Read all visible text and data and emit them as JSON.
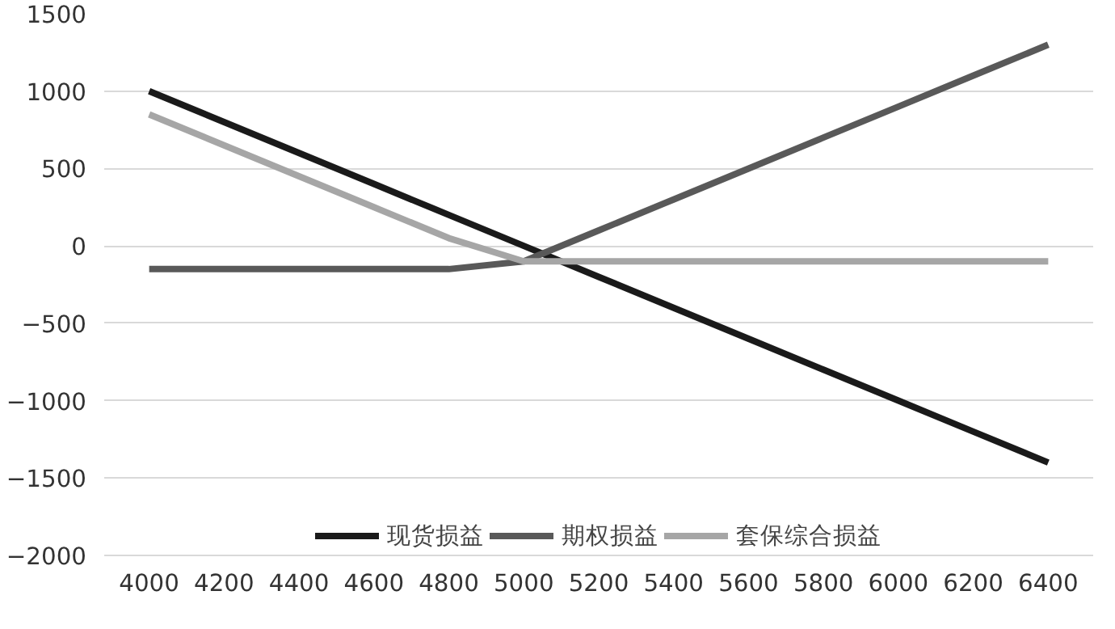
{
  "chart_data": {
    "type": "line",
    "categories": [
      "4000",
      "4200",
      "4400",
      "4600",
      "4800",
      "5000",
      "5200",
      "5400",
      "5600",
      "5800",
      "6000",
      "6200",
      "6400"
    ],
    "series": [
      {
        "name": "现货损益",
        "color": "#1a1a1a",
        "values": [
          1000,
          800,
          600,
          400,
          200,
          0,
          -200,
          -400,
          -600,
          -800,
          -1000,
          -1200,
          -1400
        ]
      },
      {
        "name": "期权损益",
        "color": "#595959",
        "values": [
          -150,
          -150,
          -150,
          -150,
          -150,
          -100,
          100,
          300,
          500,
          700,
          900,
          1100,
          1300
        ]
      },
      {
        "name": "套保综合损益",
        "color": "#a6a6a6",
        "values": [
          850,
          650,
          450,
          250,
          50,
          -100,
          -100,
          -100,
          -100,
          -100,
          -100,
          -100,
          -100
        ]
      }
    ],
    "ylim": [
      -2000,
      1500
    ],
    "yticks": [
      -2000,
      -1500,
      -1000,
      -500,
      0,
      500,
      1000,
      1500
    ],
    "grid": "y",
    "legend": "bottom",
    "marker": "none",
    "line_style": "solid"
  }
}
